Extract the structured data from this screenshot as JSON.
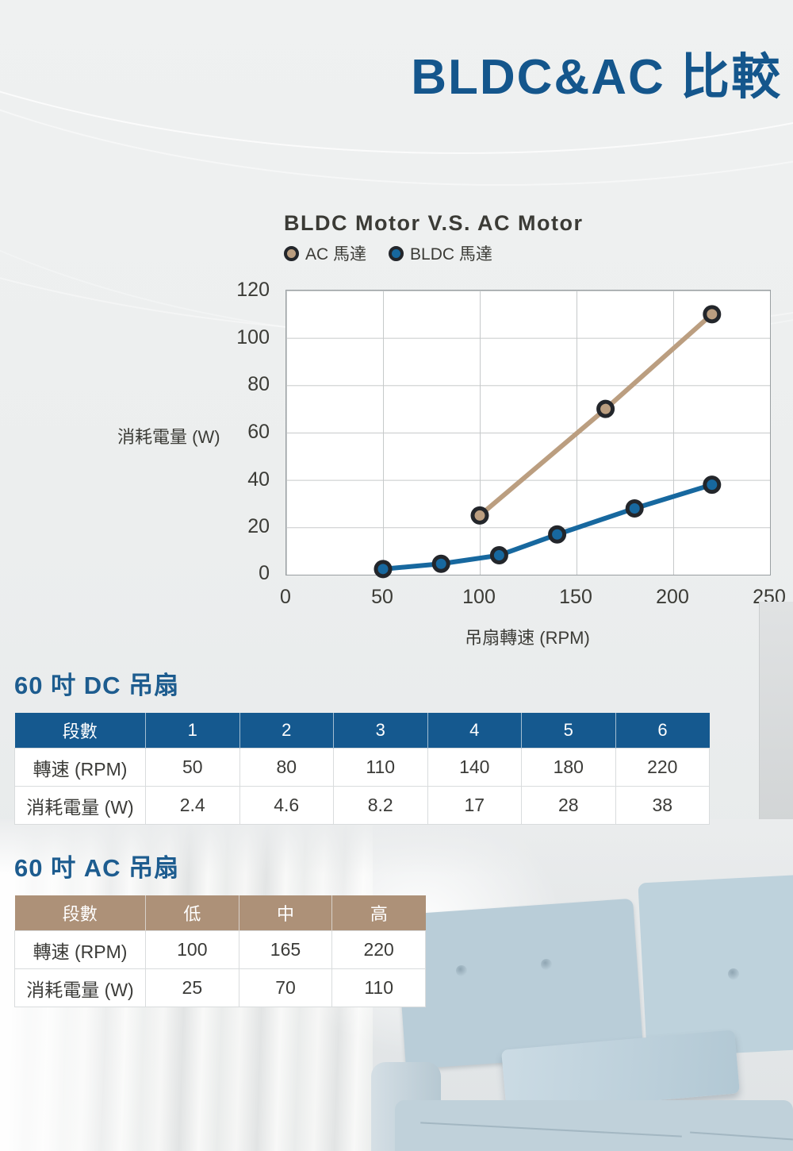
{
  "page": {
    "title": "BLDC&AC 比較"
  },
  "chart": {
    "title": "BLDC Motor V.S. AC Motor",
    "y_axis_label": "消耗電量 (W)",
    "x_axis_label": "吊扇轉速 (RPM)"
  },
  "chart_data": {
    "type": "line",
    "title": "BLDC Motor V.S. AC Motor",
    "xlabel": "吊扇轉速 (RPM)",
    "ylabel": "消耗電量 (W)",
    "xlim": [
      0,
      250
    ],
    "ylim": [
      0,
      120
    ],
    "xticks": [
      0,
      50,
      100,
      150,
      200,
      250
    ],
    "yticks": [
      0,
      20,
      40,
      60,
      80,
      100,
      120
    ],
    "grid": true,
    "legend_position": "top-left",
    "marker_outline": "#23262b",
    "series": [
      {
        "name": "AC 馬達",
        "color": "#bb9e80",
        "x": [
          100,
          165,
          220
        ],
        "y": [
          25,
          70,
          110
        ]
      },
      {
        "name": "BLDC 馬達",
        "color": "#17689f",
        "x": [
          50,
          80,
          110,
          140,
          180,
          220
        ],
        "y": [
          2.4,
          4.6,
          8.2,
          17,
          28,
          38
        ]
      }
    ]
  },
  "dc": {
    "heading": "60 吋 DC 吊扇",
    "table": {
      "header": [
        "段數",
        "1",
        "2",
        "3",
        "4",
        "5",
        "6"
      ],
      "rows": [
        {
          "label": "轉速 (RPM)",
          "values": [
            "50",
            "80",
            "110",
            "140",
            "180",
            "220"
          ]
        },
        {
          "label": "消耗電量 (W)",
          "values": [
            "2.4",
            "4.6",
            "8.2",
            "17",
            "28",
            "38"
          ]
        }
      ]
    }
  },
  "ac": {
    "heading": "60 吋 AC 吊扇",
    "table": {
      "header": [
        "段數",
        "低",
        "中",
        "高"
      ],
      "rows": [
        {
          "label": "轉速 (RPM)",
          "values": [
            "100",
            "165",
            "220"
          ]
        },
        {
          "label": "消耗電量 (W)",
          "values": [
            "25",
            "70",
            "110"
          ]
        }
      ]
    }
  },
  "colors": {
    "accent_blue": "#14568c",
    "section_heading_blue": "#1d5c8f",
    "table_dc_header": "#15598f",
    "table_ac_header": "#ad9178",
    "ac_series": "#bb9e80",
    "bldc_series": "#17689f"
  }
}
